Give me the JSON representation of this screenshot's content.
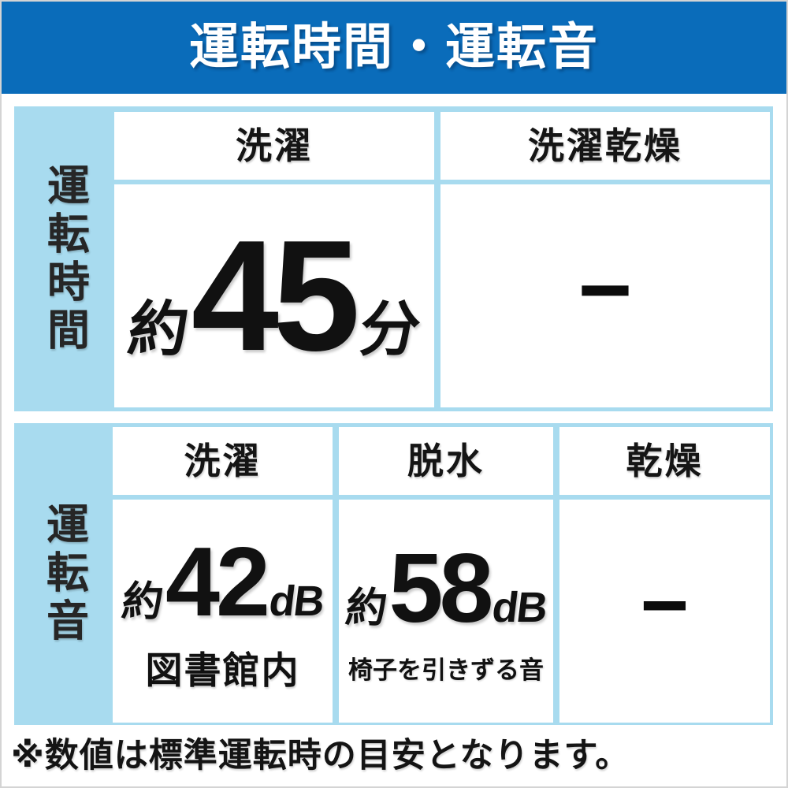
{
  "banner": {
    "title": "運転時間・運転音",
    "bg_color": "#0a6cba",
    "text_color": "#ffffff"
  },
  "operation_time_table": {
    "row_label": "運転時間",
    "column_headers": [
      "洗濯",
      "洗濯乾燥"
    ],
    "wash": {
      "approx": "約",
      "value": "45",
      "unit": "分"
    },
    "wash_dry": {
      "dash": "−"
    }
  },
  "operation_noise_table": {
    "row_label": "運転音",
    "column_headers": [
      "洗濯",
      "脱水",
      "乾燥"
    ],
    "wash": {
      "approx": "約",
      "value": "42",
      "unit": "dB",
      "caption": "図書館内"
    },
    "spin": {
      "approx": "約",
      "value": "58",
      "unit": "dB",
      "caption": "椅子を引きずる音"
    },
    "dry": {
      "dash": "−"
    }
  },
  "footnote": "※数値は標準運転時の目安となります。",
  "colors": {
    "table_bg": "#a8dbef",
    "page_border": "#d4d4d4",
    "text_dark": "#1a1a1a"
  },
  "chart_data": [
    {
      "type": "table",
      "title": "運転時間",
      "columns": [
        "洗濯",
        "洗濯乾燥"
      ],
      "rows": [
        [
          "約45分",
          "−"
        ]
      ]
    },
    {
      "type": "table",
      "title": "運転音",
      "columns": [
        "洗濯",
        "脱水",
        "乾燥"
      ],
      "rows": [
        [
          "約42dB（図書館内）",
          "約58dB（椅子を引きずる音）",
          "−"
        ]
      ]
    }
  ]
}
